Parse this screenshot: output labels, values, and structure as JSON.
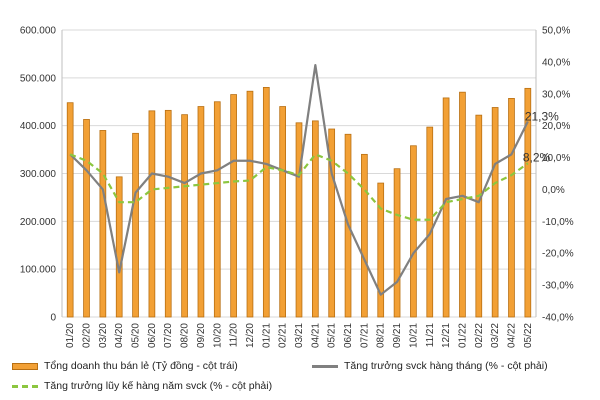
{
  "chart_data": {
    "type": "bar+line",
    "categories": [
      "01/20",
      "02/20",
      "03/20",
      "04/20",
      "05/20",
      "06/20",
      "07/20",
      "08/20",
      "09/20",
      "10/20",
      "11/20",
      "12/20",
      "01/21",
      "02/21",
      "03/21",
      "04/21",
      "05/21",
      "06/21",
      "07/21",
      "08/21",
      "09/21",
      "10/21",
      "11/21",
      "12/21",
      "01/22",
      "02/22",
      "03/22",
      "04/22",
      "05/22"
    ],
    "left_axis": {
      "min": 0,
      "max": 600000,
      "ticks": [
        "0",
        "100.000",
        "200.000",
        "300.000",
        "400.000",
        "500.000",
        "600.000"
      ],
      "tick_values": [
        0,
        100000,
        200000,
        300000,
        400000,
        500000,
        600000
      ]
    },
    "right_axis": {
      "min": -40,
      "max": 50,
      "ticks": [
        "-40,0%",
        "-30,0%",
        "-20,0%",
        "-10,0%",
        "0,0%",
        "10,0%",
        "20,0%",
        "30,0%",
        "40,0%",
        "50,0%"
      ],
      "tick_values": [
        -40,
        -30,
        -20,
        -10,
        0,
        10,
        20,
        30,
        40,
        50
      ]
    },
    "series": [
      {
        "name": "Tổng doanh thu bán lẻ (Tỷ đồng - cột trái)",
        "kind": "bar",
        "axis": "left",
        "color": "#f2a035",
        "border": "#b86f12",
        "values": [
          448000,
          413000,
          390000,
          293000,
          384000,
          431000,
          432000,
          423000,
          440000,
          450000,
          465000,
          472000,
          480000,
          440000,
          406000,
          410000,
          393000,
          382000,
          340000,
          280000,
          310000,
          358000,
          397000,
          458000,
          470000,
          422000,
          438000,
          457000,
          478000
        ]
      },
      {
        "name": "Tăng trưởng svck hàng tháng (% - cột phải)",
        "kind": "line",
        "axis": "right",
        "color": "#808080",
        "values": [
          11,
          6,
          0,
          -26,
          -1,
          5,
          4,
          2,
          5,
          6,
          9,
          9,
          8,
          6,
          4,
          39,
          5,
          -11,
          -22,
          -33,
          -29,
          -20,
          -14,
          -3,
          -2,
          -4,
          8,
          11,
          21.3
        ]
      },
      {
        "name": "Tăng trưởng lũy kế hàng năm svck (% - cột phải)",
        "kind": "line-dashed",
        "axis": "right",
        "color": "#8cc63f",
        "values": [
          11,
          9,
          5,
          -4,
          -4,
          0,
          0.5,
          1,
          1.5,
          2,
          2.5,
          2.8,
          7,
          6,
          4.5,
          11,
          9,
          5,
          0,
          -6,
          -8,
          -9.5,
          -9.5,
          -4,
          -3,
          -2,
          2,
          4.5,
          8.2
        ]
      }
    ],
    "annotations": [
      "21,3%",
      "8,2%"
    ]
  }
}
